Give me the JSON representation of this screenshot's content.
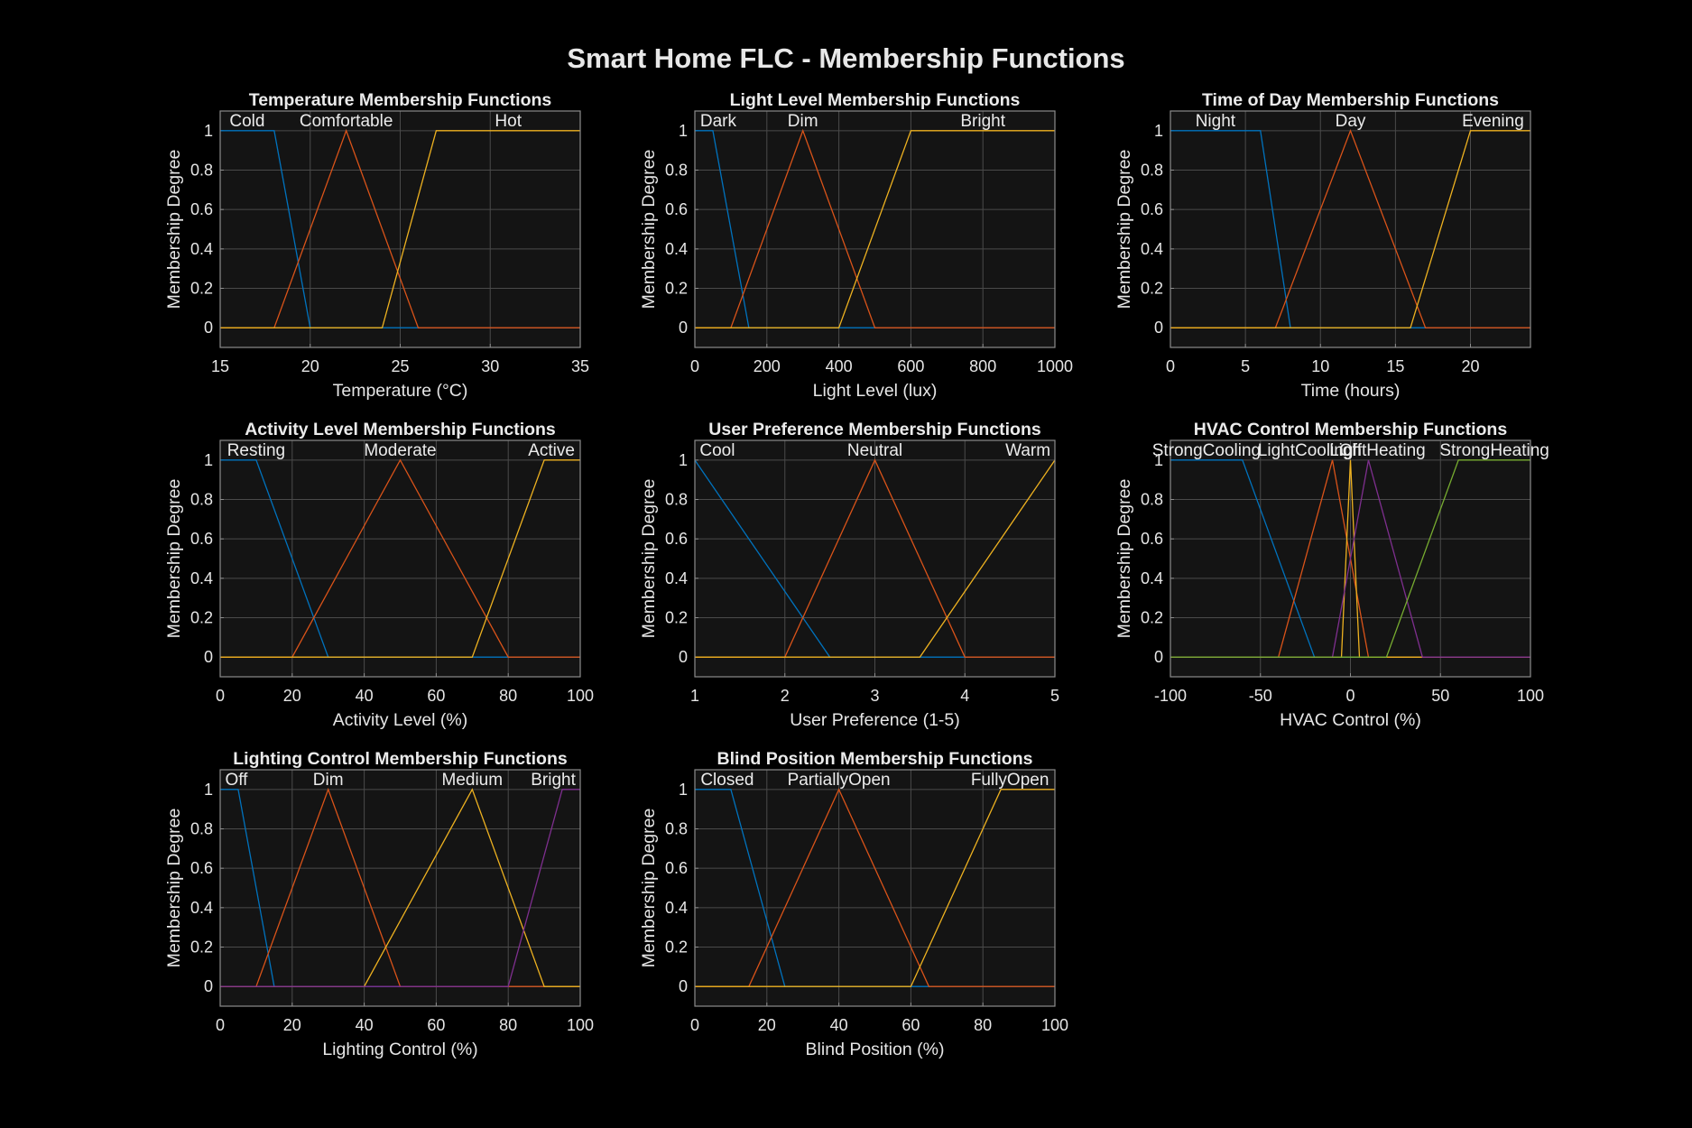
{
  "figure": {
    "title": "Smart Home FLC - Membership Functions"
  },
  "colors": {
    "background": "#000000",
    "axes_background": "#141414",
    "grid": "#4a4a4a",
    "text": "#e6e6e6",
    "series": [
      "#0072bd",
      "#d95319",
      "#edb120",
      "#7e2f8e",
      "#77ac30"
    ]
  },
  "chart_data": [
    {
      "type": "line",
      "title": "Temperature Membership Functions",
      "xlabel": "Temperature (°C)",
      "ylabel": "Membership Degree",
      "xlim": [
        15,
        35
      ],
      "ylim": [
        -0.1,
        1.1
      ],
      "xticks": [
        15,
        20,
        25,
        30,
        35
      ],
      "xtick_labels": [
        "15",
        "20",
        "25",
        "30",
        "35"
      ],
      "yticks": [
        0,
        0.2,
        0.4,
        0.6,
        0.8,
        1
      ],
      "ytick_labels": [
        "0",
        "0.2",
        "0.4",
        "0.6",
        "0.8",
        "1"
      ],
      "grid": true,
      "series": [
        {
          "name": "Cold",
          "x": [
            15,
            18,
            20,
            35
          ],
          "y": [
            1,
            1,
            0,
            0
          ]
        },
        {
          "name": "Comfortable",
          "x": [
            15,
            18,
            22,
            26,
            35
          ],
          "y": [
            0,
            0,
            1,
            0,
            0
          ]
        },
        {
          "name": "Hot",
          "x": [
            15,
            24,
            27,
            35
          ],
          "y": [
            0,
            0,
            1,
            1
          ]
        }
      ],
      "annotations": [
        {
          "text": "Cold",
          "x": 16.5,
          "y": 1.05
        },
        {
          "text": "Comfortable",
          "x": 22,
          "y": 1.05
        },
        {
          "text": "Hot",
          "x": 31,
          "y": 1.05
        }
      ]
    },
    {
      "type": "line",
      "title": "Light Level Membership Functions",
      "xlabel": "Light Level (lux)",
      "ylabel": "Membership Degree",
      "xlim": [
        0,
        1000
      ],
      "ylim": [
        -0.1,
        1.1
      ],
      "xticks": [
        0,
        200,
        400,
        600,
        800,
        1000
      ],
      "xtick_labels": [
        "0",
        "200",
        "400",
        "600",
        "800",
        "1000"
      ],
      "yticks": [
        0,
        0.2,
        0.4,
        0.6,
        0.8,
        1
      ],
      "ytick_labels": [
        "0",
        "0.2",
        "0.4",
        "0.6",
        "0.8",
        "1"
      ],
      "grid": true,
      "series": [
        {
          "name": "Dark",
          "x": [
            0,
            50,
            150,
            1000
          ],
          "y": [
            1,
            1,
            0,
            0
          ]
        },
        {
          "name": "Dim",
          "x": [
            0,
            100,
            300,
            500,
            1000
          ],
          "y": [
            0,
            0,
            1,
            0,
            0
          ]
        },
        {
          "name": "Bright",
          "x": [
            0,
            400,
            600,
            1000
          ],
          "y": [
            0,
            0,
            1,
            1
          ]
        }
      ],
      "annotations": [
        {
          "text": "Dark",
          "x": 65,
          "y": 1.05
        },
        {
          "text": "Dim",
          "x": 300,
          "y": 1.05
        },
        {
          "text": "Bright",
          "x": 800,
          "y": 1.05
        }
      ]
    },
    {
      "type": "line",
      "title": "Time of Day Membership Functions",
      "xlabel": "Time (hours)",
      "ylabel": "Membership Degree",
      "xlim": [
        0,
        24
      ],
      "ylim": [
        -0.1,
        1.1
      ],
      "xticks": [
        0,
        5,
        10,
        15,
        20
      ],
      "xtick_labels": [
        "0",
        "5",
        "10",
        "15",
        "20"
      ],
      "yticks": [
        0,
        0.2,
        0.4,
        0.6,
        0.8,
        1
      ],
      "ytick_labels": [
        "0",
        "0.2",
        "0.4",
        "0.6",
        "0.8",
        "1"
      ],
      "grid": true,
      "series": [
        {
          "name": "Night",
          "x": [
            0,
            6,
            8,
            24
          ],
          "y": [
            1,
            1,
            0,
            0
          ]
        },
        {
          "name": "Day",
          "x": [
            0,
            7,
            12,
            17,
            24
          ],
          "y": [
            0,
            0,
            1,
            0,
            0
          ]
        },
        {
          "name": "Evening",
          "x": [
            0,
            16,
            20,
            24
          ],
          "y": [
            0,
            0,
            1,
            1
          ]
        }
      ],
      "annotations": [
        {
          "text": "Night",
          "x": 3,
          "y": 1.05
        },
        {
          "text": "Day",
          "x": 12,
          "y": 1.05
        },
        {
          "text": "Evening",
          "x": 21.5,
          "y": 1.05
        }
      ]
    },
    {
      "type": "line",
      "title": "Activity Level Membership Functions",
      "xlabel": "Activity Level (%)",
      "ylabel": "Membership Degree",
      "xlim": [
        0,
        100
      ],
      "ylim": [
        -0.1,
        1.1
      ],
      "xticks": [
        0,
        20,
        40,
        60,
        80,
        100
      ],
      "xtick_labels": [
        "0",
        "20",
        "40",
        "60",
        "80",
        "100"
      ],
      "yticks": [
        0,
        0.2,
        0.4,
        0.6,
        0.8,
        1
      ],
      "ytick_labels": [
        "0",
        "0.2",
        "0.4",
        "0.6",
        "0.8",
        "1"
      ],
      "grid": true,
      "series": [
        {
          "name": "Resting",
          "x": [
            0,
            10,
            30,
            100
          ],
          "y": [
            1,
            1,
            0,
            0
          ]
        },
        {
          "name": "Moderate",
          "x": [
            0,
            20,
            50,
            80,
            100
          ],
          "y": [
            0,
            0,
            1,
            0,
            0
          ]
        },
        {
          "name": "Active",
          "x": [
            0,
            70,
            90,
            100
          ],
          "y": [
            0,
            0,
            1,
            1
          ]
        }
      ],
      "annotations": [
        {
          "text": "Resting",
          "x": 10,
          "y": 1.05
        },
        {
          "text": "Moderate",
          "x": 50,
          "y": 1.05
        },
        {
          "text": "Active",
          "x": 92,
          "y": 1.05
        }
      ]
    },
    {
      "type": "line",
      "title": "User Preference Membership Functions",
      "xlabel": "User Preference (1-5)",
      "ylabel": "Membership Degree",
      "xlim": [
        1,
        5
      ],
      "ylim": [
        -0.1,
        1.1
      ],
      "xticks": [
        1,
        2,
        3,
        4,
        5
      ],
      "xtick_labels": [
        "1",
        "2",
        "3",
        "4",
        "5"
      ],
      "yticks": [
        0,
        0.2,
        0.4,
        0.6,
        0.8,
        1
      ],
      "ytick_labels": [
        "0",
        "0.2",
        "0.4",
        "0.6",
        "0.8",
        "1"
      ],
      "grid": true,
      "series": [
        {
          "name": "Cool",
          "x": [
            1,
            2.5,
            5
          ],
          "y": [
            1,
            0,
            0
          ]
        },
        {
          "name": "Neutral",
          "x": [
            1,
            2,
            3,
            4,
            5
          ],
          "y": [
            0,
            0,
            1,
            0,
            0
          ]
        },
        {
          "name": "Warm",
          "x": [
            1,
            3.5,
            5
          ],
          "y": [
            0,
            0,
            1
          ]
        }
      ],
      "annotations": [
        {
          "text": "Cool",
          "x": 1.25,
          "y": 1.05
        },
        {
          "text": "Neutral",
          "x": 3,
          "y": 1.05
        },
        {
          "text": "Warm",
          "x": 4.7,
          "y": 1.05
        }
      ]
    },
    {
      "type": "line",
      "title": "HVAC Control Membership Functions",
      "xlabel": "HVAC Control (%)",
      "ylabel": "Membership Degree",
      "xlim": [
        -100,
        100
      ],
      "ylim": [
        -0.1,
        1.1
      ],
      "xticks": [
        -100,
        -50,
        0,
        50,
        100
      ],
      "xtick_labels": [
        "-100",
        "-50",
        "0",
        "50",
        "100"
      ],
      "yticks": [
        0,
        0.2,
        0.4,
        0.6,
        0.8,
        1
      ],
      "ytick_labels": [
        "0",
        "0.2",
        "0.4",
        "0.6",
        "0.8",
        "1"
      ],
      "grid": true,
      "series": [
        {
          "name": "StrongCooling",
          "x": [
            -100,
            -60,
            -20,
            100
          ],
          "y": [
            1,
            1,
            0,
            0
          ]
        },
        {
          "name": "LightCooling",
          "x": [
            -100,
            -40,
            -10,
            10,
            100
          ],
          "y": [
            0,
            0,
            1,
            0,
            0
          ]
        },
        {
          "name": "Off",
          "x": [
            -100,
            -5,
            0,
            5,
            100
          ],
          "y": [
            0,
            0,
            1,
            0,
            0
          ]
        },
        {
          "name": "LightHeating",
          "x": [
            -100,
            -10,
            10,
            40,
            100
          ],
          "y": [
            0,
            0,
            1,
            0,
            0
          ]
        },
        {
          "name": "StrongHeating",
          "x": [
            -100,
            20,
            60,
            100
          ],
          "y": [
            0,
            0,
            1,
            1
          ]
        }
      ],
      "annotations": [
        {
          "text": "StrongCooling",
          "x": -80,
          "y": 1.05
        },
        {
          "text": "LightCooling",
          "x": -25,
          "y": 1.05
        },
        {
          "text": "Off",
          "x": 0,
          "y": 1.05
        },
        {
          "text": "LightHeating",
          "x": 15,
          "y": 1.05
        },
        {
          "text": "StrongHeating",
          "x": 80,
          "y": 1.05
        }
      ]
    },
    {
      "type": "line",
      "title": "Lighting Control Membership Functions",
      "xlabel": "Lighting Control (%)",
      "ylabel": "Membership Degree",
      "xlim": [
        0,
        100
      ],
      "ylim": [
        -0.1,
        1.1
      ],
      "xticks": [
        0,
        20,
        40,
        60,
        80,
        100
      ],
      "xtick_labels": [
        "0",
        "20",
        "40",
        "60",
        "80",
        "100"
      ],
      "yticks": [
        0,
        0.2,
        0.4,
        0.6,
        0.8,
        1
      ],
      "ytick_labels": [
        "0",
        "0.2",
        "0.4",
        "0.6",
        "0.8",
        "1"
      ],
      "grid": true,
      "series": [
        {
          "name": "Off",
          "x": [
            0,
            5,
            15,
            100
          ],
          "y": [
            1,
            1,
            0,
            0
          ]
        },
        {
          "name": "Dim",
          "x": [
            0,
            10,
            30,
            50,
            100
          ],
          "y": [
            0,
            0,
            1,
            0,
            0
          ]
        },
        {
          "name": "Medium",
          "x": [
            0,
            40,
            70,
            90,
            100
          ],
          "y": [
            0,
            0,
            1,
            0,
            0
          ]
        },
        {
          "name": "Bright",
          "x": [
            0,
            80,
            95,
            100
          ],
          "y": [
            0,
            0,
            1,
            1
          ]
        }
      ],
      "annotations": [
        {
          "text": "Off",
          "x": 4.5,
          "y": 1.05
        },
        {
          "text": "Dim",
          "x": 30,
          "y": 1.05
        },
        {
          "text": "Medium",
          "x": 70,
          "y": 1.05
        },
        {
          "text": "Bright",
          "x": 92.5,
          "y": 1.05
        }
      ]
    },
    {
      "type": "line",
      "title": "Blind Position Membership Functions",
      "xlabel": "Blind Position (%)",
      "ylabel": "Membership Degree",
      "xlim": [
        0,
        100
      ],
      "ylim": [
        -0.1,
        1.1
      ],
      "xticks": [
        0,
        20,
        40,
        60,
        80,
        100
      ],
      "xtick_labels": [
        "0",
        "20",
        "40",
        "60",
        "80",
        "100"
      ],
      "yticks": [
        0,
        0.2,
        0.4,
        0.6,
        0.8,
        1
      ],
      "ytick_labels": [
        "0",
        "0.2",
        "0.4",
        "0.6",
        "0.8",
        "1"
      ],
      "grid": true,
      "series": [
        {
          "name": "Closed",
          "x": [
            0,
            10,
            25,
            100
          ],
          "y": [
            1,
            1,
            0,
            0
          ]
        },
        {
          "name": "PartiallyOpen",
          "x": [
            0,
            15,
            40,
            65,
            100
          ],
          "y": [
            0,
            0,
            1,
            0,
            0
          ]
        },
        {
          "name": "FullyOpen",
          "x": [
            0,
            60,
            85,
            100
          ],
          "y": [
            0,
            0,
            1,
            1
          ]
        }
      ],
      "annotations": [
        {
          "text": "Closed",
          "x": 9,
          "y": 1.05
        },
        {
          "text": "PartiallyOpen",
          "x": 40,
          "y": 1.05
        },
        {
          "text": "FullyOpen",
          "x": 87.5,
          "y": 1.05
        }
      ]
    }
  ]
}
